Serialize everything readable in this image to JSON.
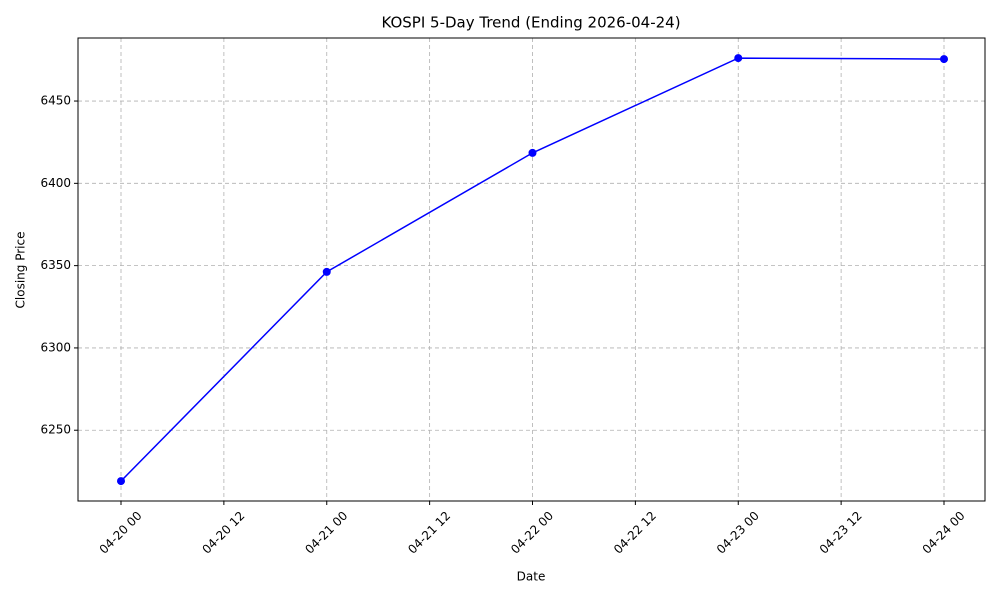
{
  "chart_data": {
    "type": "line",
    "title": "KOSPI 5-Day Trend (Ending 2026-04-24)",
    "x_label": "Date",
    "y_label": "Closing Price",
    "x": [
      "04-20 00",
      "04-21 00",
      "04-22 00",
      "04-23 00",
      "04-24 00"
    ],
    "values": [
      6219.1,
      6346.2,
      6418.5,
      6476.1,
      6475.5
    ],
    "color": "#0000ff",
    "xticks": [
      "04-20 00",
      "04-20 12",
      "04-21 00",
      "04-21 12",
      "04-22 00",
      "04-22 12",
      "04-23 00",
      "04-23 12",
      "04-24 00"
    ],
    "ylim": [
      6207.0,
      6488.3
    ],
    "yticks": [
      6250,
      6300,
      6350,
      6400,
      6450
    ],
    "grid": true
  }
}
